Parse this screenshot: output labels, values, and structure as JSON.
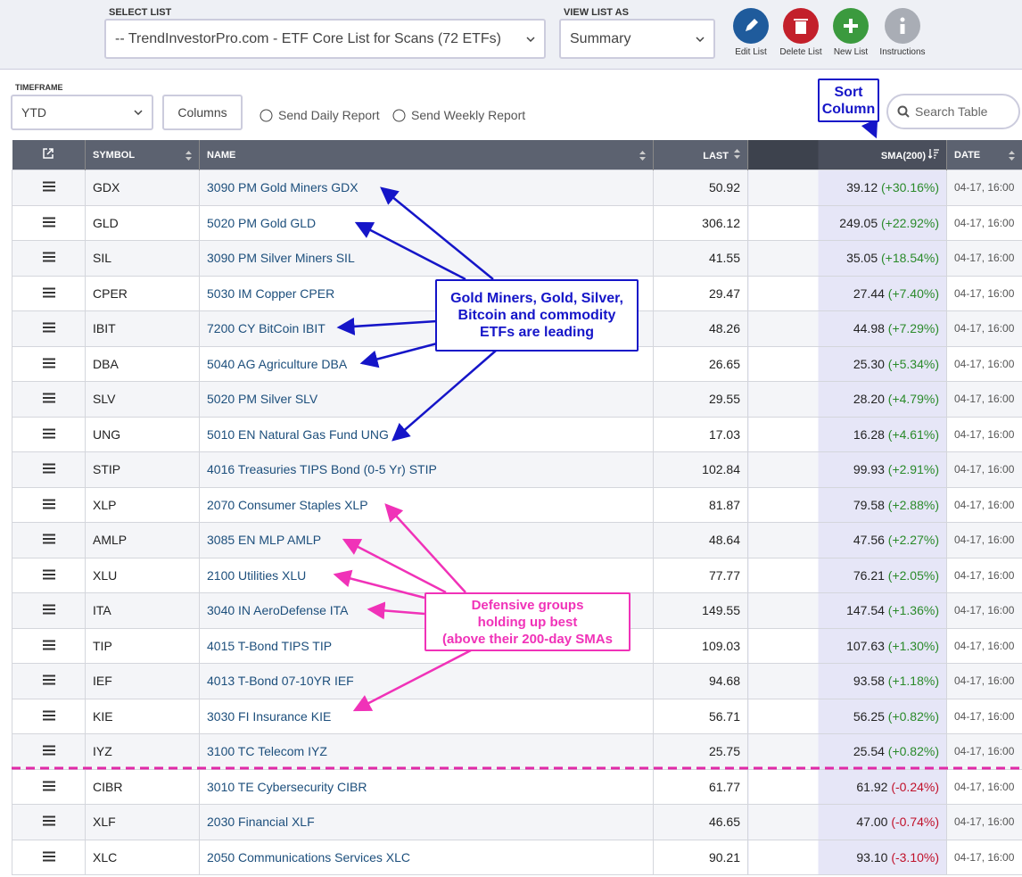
{
  "header": {
    "select_list_label": "SELECT LIST",
    "select_list": "-- TrendInvestorPro.com - ETF Core List for Scans (72 ETFs)",
    "view_label": "VIEW LIST AS",
    "view": "Summary",
    "buttons": [
      "Edit List",
      "Delete List",
      "New List",
      "Instructions"
    ]
  },
  "toolbar": {
    "timeframe_label": "TIMEFRAME",
    "timeframe": "YTD",
    "columns": "Columns",
    "daily": "Send Daily Report",
    "weekly": "Send Weekly Report",
    "search": "Search Table"
  },
  "table": {
    "headers": [
      "SYMBOL",
      "NAME",
      "LAST",
      "SMA(200)",
      "DATE"
    ],
    "rows": [
      [
        "GDX",
        "3090 PM Gold Miners GDX",
        "50.92",
        "39.12",
        "(+30.16%)",
        "04-17, 16:00"
      ],
      [
        "GLD",
        "5020 PM Gold GLD",
        "306.12",
        "249.05",
        "(+22.92%)",
        "04-17, 16:00"
      ],
      [
        "SIL",
        "3090 PM Silver Miners SIL",
        "41.55",
        "35.05",
        "(+18.54%)",
        "04-17, 16:00"
      ],
      [
        "CPER",
        "5030 IM Copper CPER",
        "29.47",
        "27.44",
        "(+7.40%)",
        "04-17, 16:00"
      ],
      [
        "IBIT",
        "7200 CY BitCoin IBIT",
        "48.26",
        "44.98",
        "(+7.29%)",
        "04-17, 16:00"
      ],
      [
        "DBA",
        "5040 AG Agriculture DBA",
        "26.65",
        "25.30",
        "(+5.34%)",
        "04-17, 16:00"
      ],
      [
        "SLV",
        "5020 PM Silver SLV",
        "29.55",
        "28.20",
        "(+4.79%)",
        "04-17, 16:00"
      ],
      [
        "UNG",
        "5010 EN Natural Gas Fund UNG",
        "17.03",
        "16.28",
        "(+4.61%)",
        "04-17, 16:00"
      ],
      [
        "STIP",
        "4016 Treasuries TIPS Bond (0-5 Yr) STIP",
        "102.84",
        "99.93",
        "(+2.91%)",
        "04-17, 16:00"
      ],
      [
        "XLP",
        "2070 Consumer Staples XLP",
        "81.87",
        "79.58",
        "(+2.88%)",
        "04-17, 16:00"
      ],
      [
        "AMLP",
        "3085 EN MLP AMLP",
        "48.64",
        "47.56",
        "(+2.27%)",
        "04-17, 16:00"
      ],
      [
        "XLU",
        "2100 Utilities XLU",
        "77.77",
        "76.21",
        "(+2.05%)",
        "04-17, 16:00"
      ],
      [
        "ITA",
        "3040 IN AeroDefense ITA",
        "149.55",
        "147.54",
        "(+1.36%)",
        "04-17, 16:00"
      ],
      [
        "TIP",
        "4015 T-Bond TIPS TIP",
        "109.03",
        "107.63",
        "(+1.30%)",
        "04-17, 16:00"
      ],
      [
        "IEF",
        "4013 T-Bond 07-10YR IEF",
        "94.68",
        "93.58",
        "(+1.18%)",
        "04-17, 16:00"
      ],
      [
        "KIE",
        "3030 FI Insurance KIE",
        "56.71",
        "56.25",
        "(+0.82%)",
        "04-17, 16:00"
      ],
      [
        "IYZ",
        "3100 TC Telecom IYZ",
        "25.75",
        "25.54",
        "(+0.82%)",
        "04-17, 16:00"
      ],
      [
        "CIBR",
        "3010 TE Cybersecurity CIBR",
        "61.77",
        "61.92",
        "(-0.24%)",
        "04-17, 16:00"
      ],
      [
        "XLF",
        "2030 Financial XLF",
        "46.65",
        "47.00",
        "(-0.74%)",
        "04-17, 16:00"
      ],
      [
        "XLC",
        "2050 Communications Services XLC",
        "90.21",
        "93.10",
        "(-3.10%)",
        "04-17, 16:00"
      ]
    ]
  },
  "annotations": {
    "sort": [
      "Sort",
      "Column"
    ],
    "leaders": [
      "Gold Miners, Gold, Silver,",
      "Bitcoin and commodity",
      "ETFs are leading"
    ],
    "defensive": [
      "Defensive groups",
      "holding up best",
      "(above their 200-day SMAs"
    ]
  }
}
